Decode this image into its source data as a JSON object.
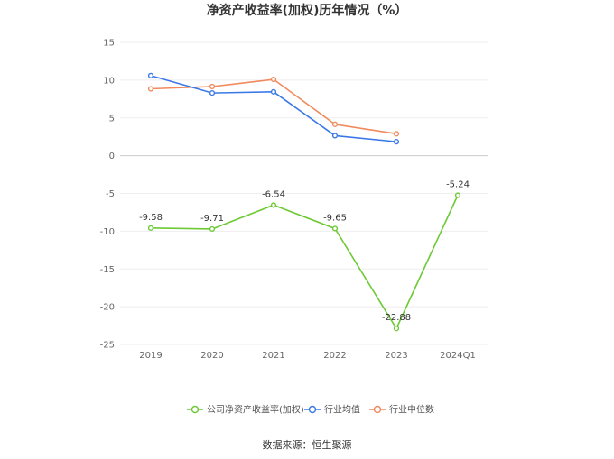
{
  "chart_data": {
    "type": "line",
    "title": "净资产收益率(加权)历年情况（%）",
    "categories": [
      "2019",
      "2020",
      "2021",
      "2022",
      "2023",
      "2024Q1"
    ],
    "ylim": [
      -25,
      15
    ],
    "yticks": [
      15,
      10,
      5,
      0,
      -5,
      -10,
      -15,
      -20,
      -25
    ],
    "ytick_labels": [
      "15",
      "10",
      "5",
      "0",
      "-5",
      "-10",
      "-15",
      "-20",
      "-25"
    ],
    "grid": true,
    "legend_position": "bottom",
    "series": [
      {
        "name": "公司净资产收益率(加权)",
        "color": "#6dc935",
        "values": [
          -9.58,
          -9.71,
          -6.54,
          -9.65,
          -22.88,
          -5.24
        ],
        "labels": [
          "-9.58",
          "-9.71",
          "-6.54",
          "-9.65",
          "-22.88",
          "-5.24"
        ]
      },
      {
        "name": "行业均值",
        "color": "#3b78e7",
        "values": [
          10.6,
          8.3,
          8.45,
          2.65,
          1.85,
          null
        ]
      },
      {
        "name": "行业中位数",
        "color": "#f08a5d",
        "values": [
          8.85,
          9.15,
          10.1,
          4.15,
          2.9,
          null
        ]
      }
    ]
  },
  "footer": {
    "source": "数据来源：恒生聚源"
  }
}
